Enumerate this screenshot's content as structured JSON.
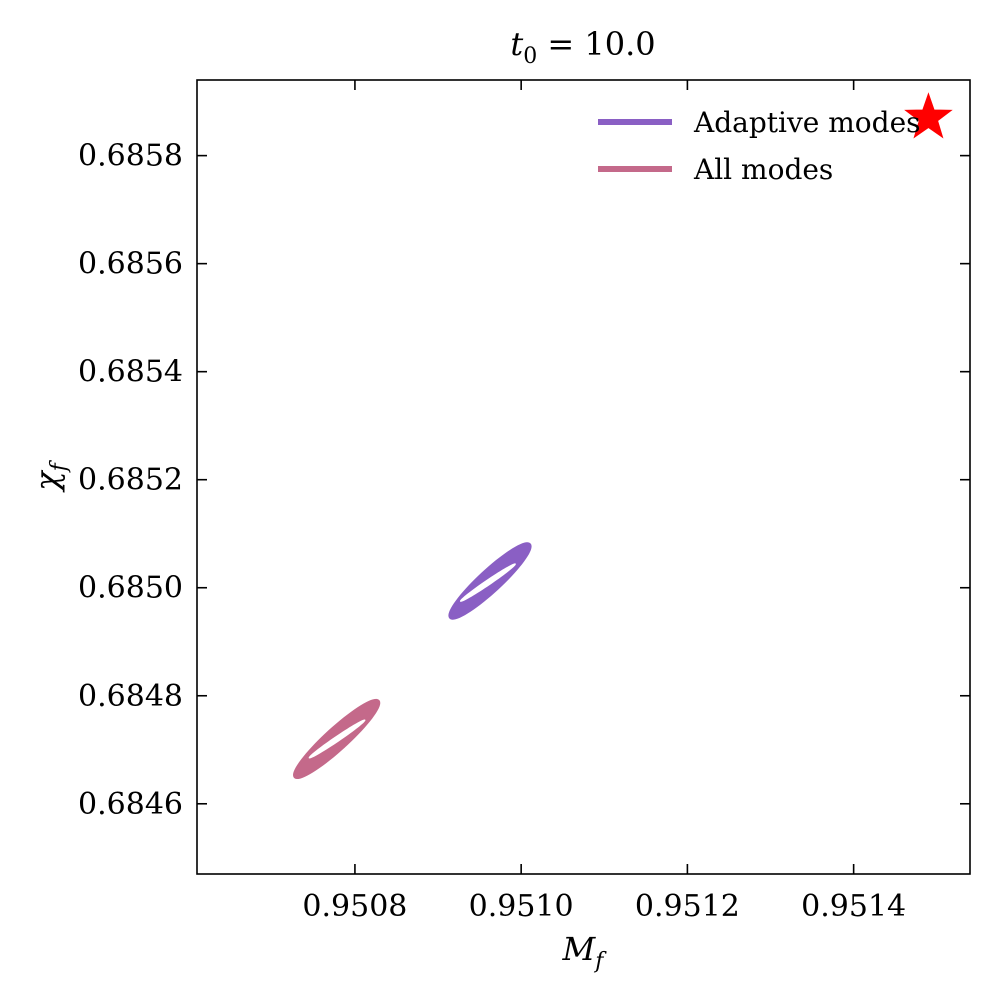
{
  "chart_data": {
    "type": "scatter",
    "title_main": "t",
    "title_sub": "0",
    "title_rest": " = 10.0",
    "xlabel_main": "M",
    "xlabel_sub": "f",
    "ylabel_main": "χ",
    "ylabel_sub": "f",
    "xlim": [
      0.95061,
      0.95154
    ],
    "ylim": [
      0.68447,
      0.68594
    ],
    "xticks": [
      {
        "value": 0.9508,
        "label": "0.9508"
      },
      {
        "value": 0.951,
        "label": "0.9510"
      },
      {
        "value": 0.9512,
        "label": "0.9512"
      },
      {
        "value": 0.9514,
        "label": "0.9514"
      }
    ],
    "yticks": [
      {
        "value": 0.6846,
        "label": "0.6846"
      },
      {
        "value": 0.6848,
        "label": "0.6848"
      },
      {
        "value": 0.685,
        "label": "0.6850"
      },
      {
        "value": 0.6852,
        "label": "0.6852"
      },
      {
        "value": 0.6854,
        "label": "0.6854"
      },
      {
        "value": 0.6856,
        "label": "0.6856"
      },
      {
        "value": 0.6858,
        "label": "0.6858"
      }
    ],
    "legend_position": "top-right",
    "series": [
      {
        "name": "Adaptive modes",
        "color": "#8a5fc4",
        "kind": "contour",
        "outer": {
          "center": [
            0.95096,
            0.68501
          ],
          "tip1": [
            0.95101,
            0.68508
          ],
          "tip2": [
            0.950915,
            0.684945
          ],
          "halfwidth": 1.25e-05
        },
        "inner": {
          "center": [
            0.95096,
            0.68501
          ],
          "tip1": [
            0.950993,
            0.685044
          ],
          "tip2": [
            0.950927,
            0.684975
          ],
          "halfwidth": 3e-06
        }
      },
      {
        "name": "All modes",
        "color": "#c4698a",
        "kind": "contour",
        "outer": {
          "center": [
            0.95078,
            0.68472
          ],
          "tip1": [
            0.950828,
            0.68479
          ],
          "tip2": [
            0.950728,
            0.68465
          ],
          "halfwidth": 1.25e-05
        },
        "inner": {
          "center": [
            0.95078,
            0.68472
          ],
          "tip1": [
            0.950812,
            0.684755
          ],
          "tip2": [
            0.950745,
            0.684685
          ],
          "halfwidth": 3e-06
        }
      }
    ],
    "truth_marker": {
      "x": 0.95149,
      "y": 0.68587,
      "color": "#ff0000",
      "shape": "star"
    }
  }
}
